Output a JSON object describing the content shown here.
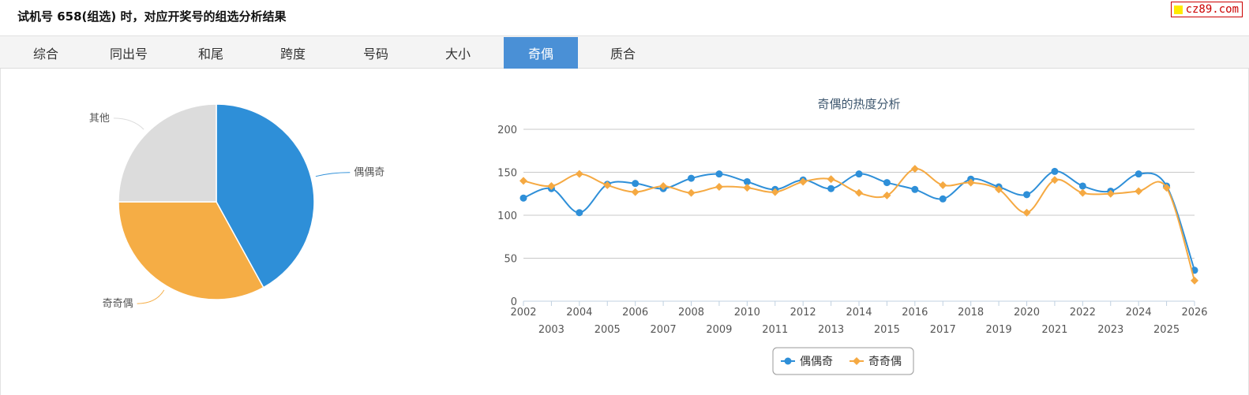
{
  "header": {
    "title": "试机号 658(组选) 时，对应开奖号的组选分析结果"
  },
  "watermark": {
    "text": "cz89.com",
    "colors": {
      "square": "#ffeb00",
      "text": "#cc0000"
    }
  },
  "tabs": [
    {
      "label": "综合",
      "active": false
    },
    {
      "label": "同出号",
      "active": false
    },
    {
      "label": "和尾",
      "active": false
    },
    {
      "label": "跨度",
      "active": false
    },
    {
      "label": "号码",
      "active": false
    },
    {
      "label": "大小",
      "active": false
    },
    {
      "label": "奇偶",
      "active": true
    },
    {
      "label": "质合",
      "active": false
    }
  ],
  "colors": {
    "accent": "#4a90d6",
    "series_blue": "#2e8fd8",
    "series_orange": "#f5a942",
    "other_gray": "#dcdcdc"
  },
  "chart_data": [
    {
      "type": "pie",
      "title": "",
      "slices": [
        {
          "label": "偶偶奇",
          "value": 42,
          "color": "#2e8fd8"
        },
        {
          "label": "奇奇偶",
          "value": 33,
          "color": "#f5ad45"
        },
        {
          "label": "其他",
          "value": 25,
          "color": "#dcdcdc"
        }
      ]
    },
    {
      "type": "line",
      "title": "奇偶的热度分析",
      "xlabel": "",
      "ylabel": "",
      "ylim": [
        0,
        200
      ],
      "yticks": [
        0,
        50,
        100,
        150,
        200
      ],
      "grid": true,
      "legend_position": "bottom-center",
      "x": [
        "2002",
        "2003",
        "2004",
        "2005",
        "2006",
        "2007",
        "2008",
        "2009",
        "2010",
        "2011",
        "2012",
        "2013",
        "2014",
        "2015",
        "2016",
        "2017",
        "2018",
        "2019",
        "2020",
        "2021",
        "2022",
        "2023",
        "2024",
        "2025",
        "2026"
      ],
      "series": [
        {
          "name": "偶偶奇",
          "color": "#2e8fd8",
          "marker": "circle",
          "values": [
            120,
            131,
            103,
            136,
            137,
            131,
            143,
            148,
            139,
            130,
            141,
            131,
            148,
            138,
            130,
            119,
            142,
            133,
            124,
            151,
            134,
            128,
            148,
            134,
            36
          ]
        },
        {
          "name": "奇奇偶",
          "color": "#f5a942",
          "marker": "diamond",
          "values": [
            140,
            134,
            148,
            135,
            127,
            134,
            126,
            133,
            132,
            127,
            139,
            142,
            126,
            123,
            154,
            135,
            138,
            130,
            103,
            141,
            126,
            125,
            128,
            132,
            24
          ]
        }
      ]
    }
  ]
}
